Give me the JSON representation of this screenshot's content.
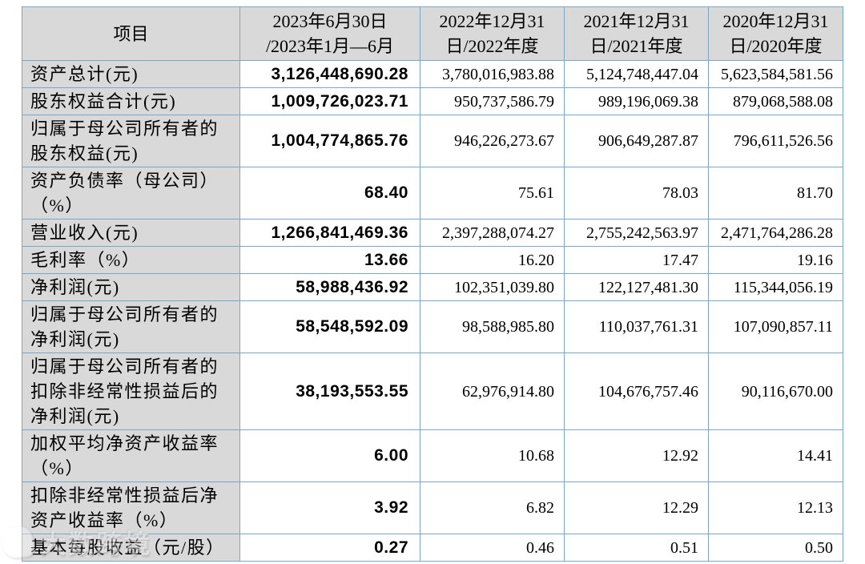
{
  "colors": {
    "border": "#7ba7c7",
    "header_bg": "#d9d9d9",
    "text": "#000000",
    "page_bg": "#ffffff"
  },
  "table": {
    "columns": [
      {
        "label": "项目"
      },
      {
        "label": "2023年6月30日\n/2023年1月—6月"
      },
      {
        "label": "2022年12月31\n日/2022年度"
      },
      {
        "label": "2021年12月31\n日/2021年度"
      },
      {
        "label": "2020年12月31\n日/2020年度"
      }
    ],
    "rows": [
      {
        "label": "资产总计(元)",
        "values": [
          "3,126,448,690.28",
          "3,780,016,983.88",
          "5,124,748,447.04",
          "5,623,584,581.56"
        ]
      },
      {
        "label": "股东权益合计(元)",
        "values": [
          "1,009,726,023.71",
          "950,737,586.79",
          "989,196,069.38",
          "879,068,588.08"
        ]
      },
      {
        "label": "归属于母公司所有者的股东权益(元)",
        "values": [
          "1,004,774,865.76",
          "946,226,273.67",
          "906,649,287.87",
          "796,611,526.56"
        ]
      },
      {
        "label": "资产负债率（母公司）（%）",
        "values": [
          "68.40",
          "75.61",
          "78.03",
          "81.70"
        ]
      },
      {
        "label": "营业收入(元)",
        "values": [
          "1,266,841,469.36",
          "2,397,288,074.27",
          "2,755,242,563.97",
          "2,471,764,286.28"
        ]
      },
      {
        "label": "毛利率（%）",
        "values": [
          "13.66",
          "16.20",
          "17.47",
          "19.16"
        ]
      },
      {
        "label": "净利润(元)",
        "values": [
          "58,988,436.92",
          "102,351,039.80",
          "122,127,481.30",
          "115,344,056.19"
        ]
      },
      {
        "label": "归属于母公司所有者的净利润(元)",
        "values": [
          "58,548,592.09",
          "98,588,985.80",
          "110,037,761.31",
          "107,090,857.11"
        ]
      },
      {
        "label": "归属于母公司所有者的扣除非经常性损益后的净利润(元)",
        "values": [
          "38,193,553.55",
          "62,976,914.80",
          "104,676,757.46",
          "90,116,670.00"
        ]
      },
      {
        "label": "加权平均净资产收益率（%）",
        "values": [
          "6.00",
          "10.68",
          "12.92",
          "14.41"
        ]
      },
      {
        "label": "扣除非经常性损益后净资产收益率（%）",
        "values": [
          "3.92",
          "6.82",
          "12.29",
          "12.13"
        ]
      },
      {
        "label": "基本每股收益（元/股）",
        "values": [
          "0.27",
          "0.46",
          "0.51",
          "0.50"
        ]
      }
    ]
  },
  "watermark": {
    "text": "大数跨境"
  }
}
